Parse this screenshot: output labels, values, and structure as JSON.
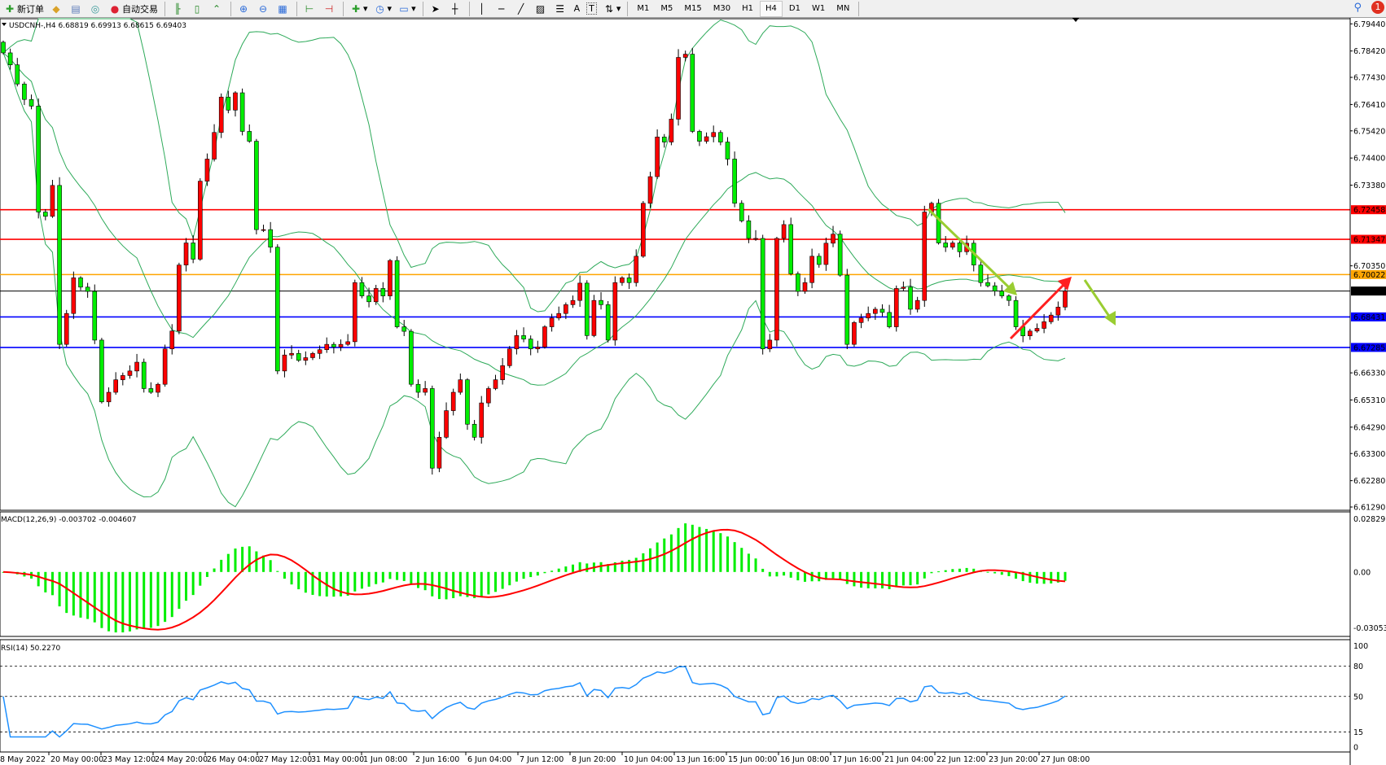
{
  "toolbar": {
    "new_order": "新订单",
    "auto_trading": "自动交易",
    "text_tool": "A",
    "text_label_tool": "T",
    "timeframes": [
      "M1",
      "M5",
      "M15",
      "M30",
      "H1",
      "H4",
      "D1",
      "W1",
      "MN"
    ],
    "selected_timeframe": "H4",
    "notification_count": "1"
  },
  "main_chart": {
    "header": "USDCNH-,H4  6.68819 6.69913 6.68615 6.69403",
    "price_axis": [
      "6.79440",
      "6.78420",
      "6.77430",
      "6.76410",
      "6.75420",
      "6.74400",
      "6.73380",
      "6.72458",
      "6.71347",
      "6.70350",
      "6.70022",
      "6.69403",
      "6.68431",
      "6.67285",
      "6.66330",
      "6.65310",
      "6.64290",
      "6.63300",
      "6.62280",
      "6.61290"
    ],
    "price_range": [
      6.6129,
      6.7944
    ],
    "levels": [
      {
        "price": "6.72458",
        "color": "#ff0000"
      },
      {
        "price": "6.71347",
        "color": "#ff0000"
      },
      {
        "price": "6.70022",
        "color": "#ffa500"
      },
      {
        "price": "6.69403",
        "color": "#000000"
      },
      {
        "price": "6.68431",
        "color": "#0000ff"
      },
      {
        "price": "6.67285",
        "color": "#0000ff"
      }
    ],
    "bull_color": "#ff0000",
    "bear_color": "#00ee00",
    "band_color": "#2eaa5a",
    "closes": [
      6.7835,
      6.779,
      6.7718,
      6.766,
      6.7635,
      6.7237,
      6.7221,
      6.7337,
      6.674,
      6.6856,
      6.699,
      6.6955,
      6.6939,
      6.6756,
      6.6524,
      6.656,
      6.6607,
      6.6623,
      6.664,
      6.6673,
      6.6574,
      6.656,
      6.659,
      6.6723,
      6.679,
      6.7038,
      6.7121,
      6.706,
      6.7353,
      6.7436,
      6.7536,
      6.7669,
      6.762,
      6.7685,
      6.754,
      6.7503,
      6.7171,
      6.7171,
      6.7105,
      6.664,
      6.67,
      6.6706,
      6.668,
      6.669,
      6.6706,
      6.672,
      6.674,
      6.673,
      6.674,
      6.675,
      6.6972,
      6.6922,
      6.69,
      6.695,
      6.6922,
      6.7055,
      6.6806,
      6.6789,
      6.659,
      6.656,
      6.6574,
      6.6275,
      6.6391,
      6.6491,
      6.656,
      6.6607,
      6.644,
      6.6391,
      6.652,
      6.6574,
      6.6607,
      6.666,
      6.6723,
      6.6773,
      6.676,
      6.6723,
      6.673,
      6.6806,
      6.6839,
      6.6856,
      6.6889,
      6.6905,
      6.697,
      6.6773,
      6.6905,
      6.6889,
      6.6756,
      6.6972,
      6.699,
      6.6972,
      6.7071,
      6.727,
      6.737,
      6.7519,
      6.75,
      6.7586,
      6.7818,
      6.783,
      6.754,
      6.7503,
      6.752,
      6.7536,
      6.75,
      6.7436,
      6.727,
      6.7204,
      6.7138,
      6.7138,
      6.6723,
      6.6756,
      6.7138,
      6.719,
      6.7005,
      6.6939,
      6.6972,
      6.7071,
      6.704,
      6.712,
      6.7154,
      6.7,
      6.674,
      6.6822,
      6.6839,
      6.6856,
      6.6872,
      6.686,
      6.6806,
      6.695,
      6.6955,
      6.6872,
      6.6905,
      6.7237,
      6.727,
      6.7121,
      6.7105,
      6.7121,
      6.7088,
      6.712,
      6.7038,
      6.6972,
      6.696,
      6.694,
      6.6922,
      6.6905,
      6.6806,
      6.6772,
      6.679,
      6.68,
      6.6825,
      6.685,
      6.688,
      6.69403
    ]
  },
  "macd": {
    "header": "MACD(12,26,9) -0.003702 -0.004607",
    "axis": [
      "0.02829",
      "0.00",
      "-0.030537"
    ],
    "range": [
      -0.030537,
      0.02829
    ],
    "hist_color": "#00ee00",
    "signal_color": "#ff0000"
  },
  "rsi": {
    "header": "RSI(14) 50.2270",
    "axis": [
      "100",
      "80",
      "50",
      "15",
      "0"
    ],
    "line_color": "#1e90ff"
  },
  "time_axis": [
    "8 May 2022",
    "20 May 00:00",
    "23 May 12:00",
    "24 May 20:00",
    "26 May 04:00",
    "27 May 12:00",
    "31 May 00:00",
    "1 Jun 08:00",
    "2 Jun 16:00",
    "6 Jun 04:00",
    "7 Jun 12:00",
    "8 Jun 20:00",
    "10 Jun 04:00",
    "13 Jun 16:00",
    "15 Jun 00:00",
    "16 Jun 08:00",
    "17 Jun 16:00",
    "21 Jun 04:00",
    "22 Jun 12:00",
    "23 Jun 20:00",
    "27 Jun 08:00"
  ]
}
